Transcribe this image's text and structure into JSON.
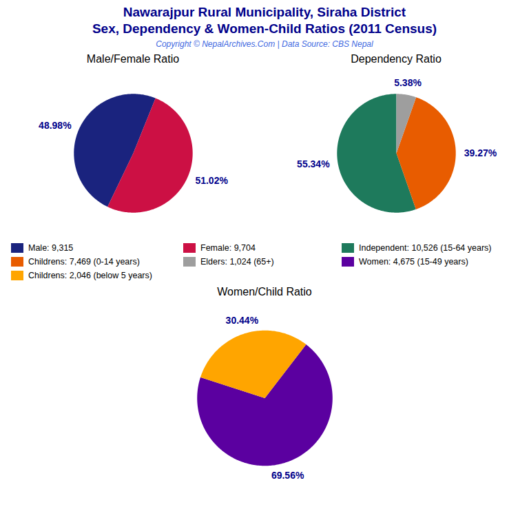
{
  "title": "Nawarajpur Rural Municipality, Siraha District",
  "subtitle": "Sex, Dependency & Women-Child Ratios (2011 Census)",
  "caption": "Copyright © NepalArchives.Com | Data Source: CBS Nepal",
  "chart_data": [
    {
      "type": "pie",
      "title": "Male/Female Ratio",
      "categories": [
        "Male: 9,315",
        "Female: 9,704"
      ],
      "values": [
        48.98,
        51.02
      ],
      "value_labels": [
        "48.98%",
        "51.02%"
      ],
      "colors": [
        "#1A237E",
        "#CC1044"
      ],
      "data_labels": true,
      "legend": "bottom"
    },
    {
      "type": "pie",
      "title": "Dependency Ratio",
      "categories": [
        "Independent: 10,526 (15-64 years)",
        "Childrens: 7,469 (0-14 years)",
        "Elders: 1,024 (65+)"
      ],
      "values": [
        55.34,
        39.27,
        5.38
      ],
      "value_labels": [
        "55.34%",
        "39.27%",
        "5.38%"
      ],
      "colors": [
        "#1E7A5C",
        "#E85C00",
        "#9E9E9E"
      ],
      "data_labels": true,
      "legend": "bottom"
    },
    {
      "type": "pie",
      "title": "Women/Child Ratio",
      "categories": [
        "Women: 4,675 (15-49 years)",
        "Childrens: 2,046 (below 5 years)"
      ],
      "values": [
        69.56,
        30.44
      ],
      "value_labels": [
        "69.56%",
        "30.44%"
      ],
      "colors": [
        "#5B00A0",
        "#FFA500"
      ],
      "data_labels": true,
      "legend": "top"
    }
  ]
}
